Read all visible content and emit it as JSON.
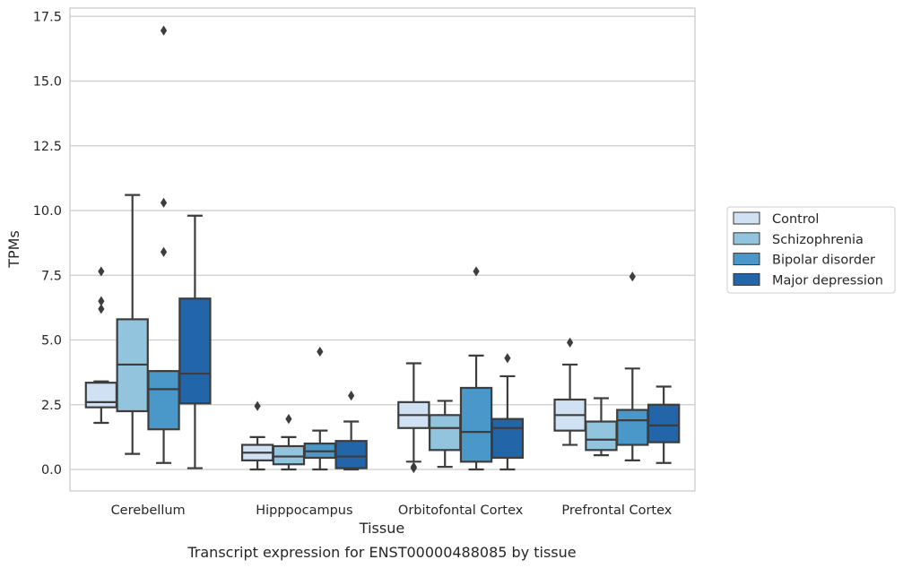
{
  "chart_data": {
    "type": "box",
    "xlabel": "Tissue",
    "ylabel": "TPMs",
    "caption": "Transcript expression for ENST00000488085 by tissue",
    "ylim": [
      -0.85,
      17.85
    ],
    "yticks": [
      "0.0",
      "2.5",
      "5.0",
      "7.5",
      "10.0",
      "12.5",
      "15.0",
      "17.5"
    ],
    "ytick_values": [
      0,
      2.5,
      5,
      7.5,
      10,
      12.5,
      15,
      17.5
    ],
    "grid": "horizontal",
    "legend_position": "right",
    "categories": [
      "Cerebellum",
      "Hipppocampus",
      "Orbitofontal Cortex",
      "Prefrontal Cortex"
    ],
    "series": [
      {
        "name": "Control",
        "color": "#cfe1f2",
        "boxes": [
          {
            "whislo": 1.8,
            "q1": 2.4,
            "med": 2.6,
            "q3": 3.35,
            "whishi": 3.4,
            "fliers": [
              6.2,
              6.5,
              7.65
            ]
          },
          {
            "whislo": 0.0,
            "q1": 0.35,
            "med": 0.65,
            "q3": 0.95,
            "whishi": 1.25,
            "fliers": [
              2.45
            ]
          },
          {
            "whislo": 0.3,
            "q1": 1.6,
            "med": 2.1,
            "q3": 2.6,
            "whishi": 4.1,
            "fliers": [
              0.05,
              0.1
            ]
          },
          {
            "whislo": 0.95,
            "q1": 1.5,
            "med": 2.1,
            "q3": 2.7,
            "whishi": 4.05,
            "fliers": [
              4.9
            ]
          }
        ]
      },
      {
        "name": "Schizophrenia",
        "color": "#93c4de",
        "boxes": [
          {
            "whislo": 0.6,
            "q1": 2.25,
            "med": 4.05,
            "q3": 5.8,
            "whishi": 10.6,
            "fliers": []
          },
          {
            "whislo": 0.0,
            "q1": 0.2,
            "med": 0.5,
            "q3": 0.9,
            "whishi": 1.25,
            "fliers": [
              1.95
            ]
          },
          {
            "whislo": 0.1,
            "q1": 0.75,
            "med": 1.6,
            "q3": 2.1,
            "whishi": 2.65,
            "fliers": []
          },
          {
            "whislo": 0.55,
            "q1": 0.75,
            "med": 1.15,
            "q3": 1.85,
            "whishi": 2.75,
            "fliers": []
          }
        ]
      },
      {
        "name": "Bipolar disorder",
        "color": "#4a98c9",
        "boxes": [
          {
            "whislo": 0.25,
            "q1": 1.55,
            "med": 3.1,
            "q3": 3.8,
            "whishi": 3.8,
            "fliers": [
              8.4,
              10.3,
              16.95
            ]
          },
          {
            "whislo": 0.0,
            "q1": 0.45,
            "med": 0.7,
            "q3": 1.0,
            "whishi": 1.5,
            "fliers": [
              4.55
            ]
          },
          {
            "whislo": 0.0,
            "q1": 0.3,
            "med": 1.45,
            "q3": 3.15,
            "whishi": 4.4,
            "fliers": [
              7.65
            ]
          },
          {
            "whislo": 0.35,
            "q1": 0.95,
            "med": 1.9,
            "q3": 2.3,
            "whishi": 3.9,
            "fliers": [
              7.45
            ]
          }
        ]
      },
      {
        "name": "Major depression",
        "color": "#2265a8",
        "boxes": [
          {
            "whislo": 0.05,
            "q1": 2.55,
            "med": 3.7,
            "q3": 6.6,
            "whishi": 9.8,
            "fliers": []
          },
          {
            "whislo": 0.0,
            "q1": 0.05,
            "med": 0.5,
            "q3": 1.1,
            "whishi": 1.85,
            "fliers": [
              2.85
            ]
          },
          {
            "whislo": 0.0,
            "q1": 0.45,
            "med": 1.6,
            "q3": 1.95,
            "whishi": 3.6,
            "fliers": [
              4.3
            ]
          },
          {
            "whislo": 0.25,
            "q1": 1.05,
            "med": 1.7,
            "q3": 2.5,
            "whishi": 3.2,
            "fliers": []
          }
        ]
      }
    ]
  }
}
